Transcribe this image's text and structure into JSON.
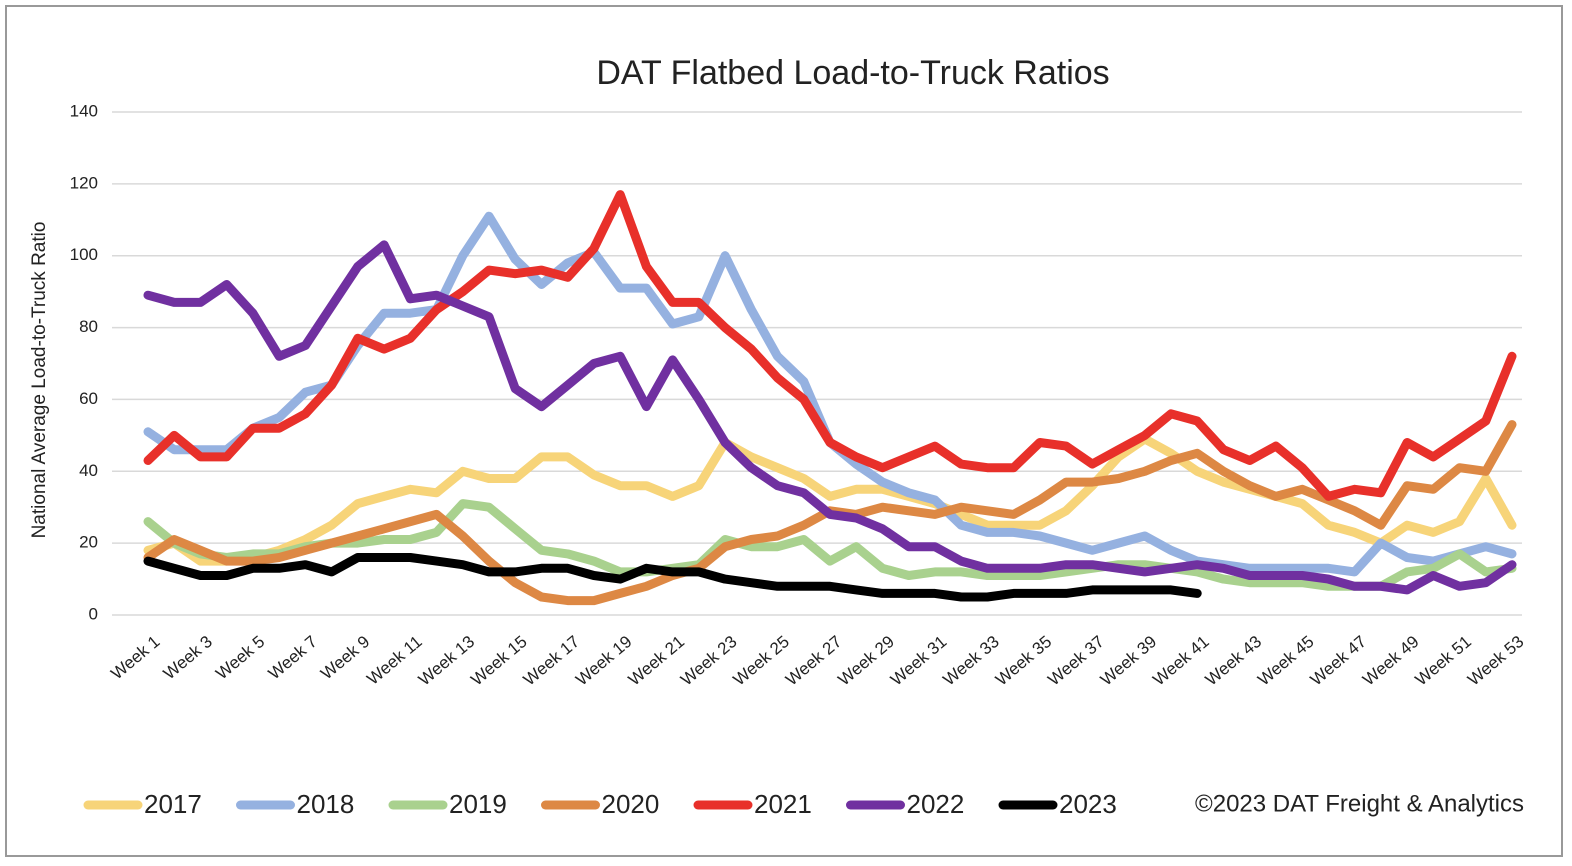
{
  "chart_data": {
    "type": "line",
    "title": "DAT Flatbed Load-to-Truck Ratios",
    "y_label": "National Average Load-to-Truck Ratio",
    "source": "©2023 DAT Freight & Analytics",
    "categories": [
      "Week 1",
      null,
      "Week 3",
      null,
      "Week 5",
      null,
      "Week 7",
      null,
      "Week 9",
      null,
      "Week 11",
      null,
      "Week 13",
      null,
      "Week 15",
      null,
      "Week 17",
      null,
      "Week 19",
      null,
      "Week 21",
      null,
      "Week 23",
      null,
      "Week 25",
      null,
      "Week 27",
      null,
      "Week 29",
      null,
      "Week 31",
      null,
      "Week 33",
      null,
      "Week 35",
      null,
      "Week 37",
      null,
      "Week 39",
      null,
      "Week 41",
      null,
      "Week 43",
      null,
      "Week 45",
      null,
      "Week 47",
      null,
      "Week 49",
      null,
      "Week 51",
      null,
      "Week 53"
    ],
    "ylim": [
      0,
      140
    ],
    "yticks": [
      0,
      20,
      40,
      60,
      80,
      100,
      120,
      140
    ],
    "grid": true,
    "legend": "bottom",
    "series": [
      {
        "name": "2017",
        "color": "#f7d479",
        "values": [
          18,
          20,
          15,
          15,
          16,
          18,
          21,
          25,
          31,
          33,
          35,
          34,
          40,
          38,
          38,
          44,
          44,
          39,
          36,
          36,
          33,
          36,
          48,
          44,
          41,
          38,
          33,
          35,
          35,
          33,
          31,
          28,
          25,
          25,
          25,
          29,
          36,
          44,
          49,
          45,
          40,
          37,
          35,
          33,
          31,
          25,
          23,
          20,
          25,
          23,
          26,
          38,
          25
        ]
      },
      {
        "name": "2018",
        "color": "#95b1e0",
        "values": [
          51,
          46,
          46,
          46,
          52,
          55,
          62,
          64,
          75,
          84,
          84,
          85,
          100,
          111,
          99,
          92,
          98,
          101,
          91,
          91,
          81,
          83,
          100,
          85,
          72,
          65,
          48,
          42,
          37,
          34,
          32,
          25,
          23,
          23,
          22,
          20,
          18,
          20,
          22,
          18,
          15,
          14,
          13,
          13,
          13,
          13,
          12,
          20,
          16,
          15,
          17,
          19,
          17
        ]
      },
      {
        "name": "2019",
        "color": "#a9d18e",
        "values": [
          26,
          20,
          17,
          16,
          17,
          17,
          19,
          20,
          20,
          21,
          21,
          23,
          31,
          30,
          24,
          18,
          17,
          15,
          12,
          12,
          13,
          14,
          21,
          19,
          19,
          21,
          15,
          19,
          13,
          11,
          12,
          12,
          11,
          11,
          11,
          12,
          13,
          14,
          14,
          13,
          12,
          10,
          9,
          9,
          9,
          8,
          8,
          8,
          12,
          13,
          17,
          12,
          13
        ]
      },
      {
        "name": "2020",
        "color": "#dd8844",
        "values": [
          16,
          21,
          18,
          15,
          15,
          16,
          18,
          20,
          22,
          24,
          26,
          28,
          22,
          15,
          9,
          5,
          4,
          4,
          6,
          8,
          11,
          13,
          19,
          21,
          22,
          25,
          29,
          28,
          30,
          29,
          28,
          30,
          29,
          28,
          32,
          37,
          37,
          38,
          40,
          43,
          45,
          40,
          36,
          33,
          35,
          32,
          29,
          25,
          36,
          35,
          41,
          40,
          53
        ]
      },
      {
        "name": "2021",
        "color": "#e8302a",
        "values": [
          43,
          50,
          44,
          44,
          52,
          52,
          56,
          64,
          77,
          74,
          77,
          85,
          90,
          96,
          95,
          96,
          94,
          102,
          117,
          97,
          87,
          87,
          80,
          74,
          66,
          60,
          48,
          44,
          41,
          44,
          47,
          42,
          41,
          41,
          48,
          47,
          42,
          46,
          50,
          56,
          54,
          46,
          43,
          47,
          41,
          33,
          35,
          34,
          48,
          44,
          49,
          54,
          72
        ]
      },
      {
        "name": "2022",
        "color": "#7030a0",
        "values": [
          89,
          87,
          87,
          92,
          84,
          72,
          75,
          86,
          97,
          103,
          88,
          89,
          86,
          83,
          63,
          58,
          64,
          70,
          72,
          58,
          71,
          60,
          48,
          41,
          36,
          34,
          28,
          27,
          24,
          19,
          19,
          15,
          13,
          13,
          13,
          14,
          14,
          13,
          12,
          13,
          14,
          13,
          11,
          11,
          11,
          10,
          8,
          8,
          7,
          11,
          8,
          9,
          14
        ]
      },
      {
        "name": "2023",
        "color": "#000000",
        "values": [
          15,
          13,
          11,
          11,
          13,
          13,
          14,
          12,
          16,
          16,
          16,
          15,
          14,
          12,
          12,
          13,
          13,
          11,
          10,
          13,
          12,
          12,
          10,
          9,
          8,
          8,
          8,
          7,
          6,
          6,
          6,
          5,
          5,
          6,
          6,
          6,
          7,
          7,
          7,
          7,
          6,
          null,
          null,
          null,
          null,
          null,
          null,
          null,
          null,
          null,
          null,
          null,
          null
        ]
      }
    ]
  }
}
